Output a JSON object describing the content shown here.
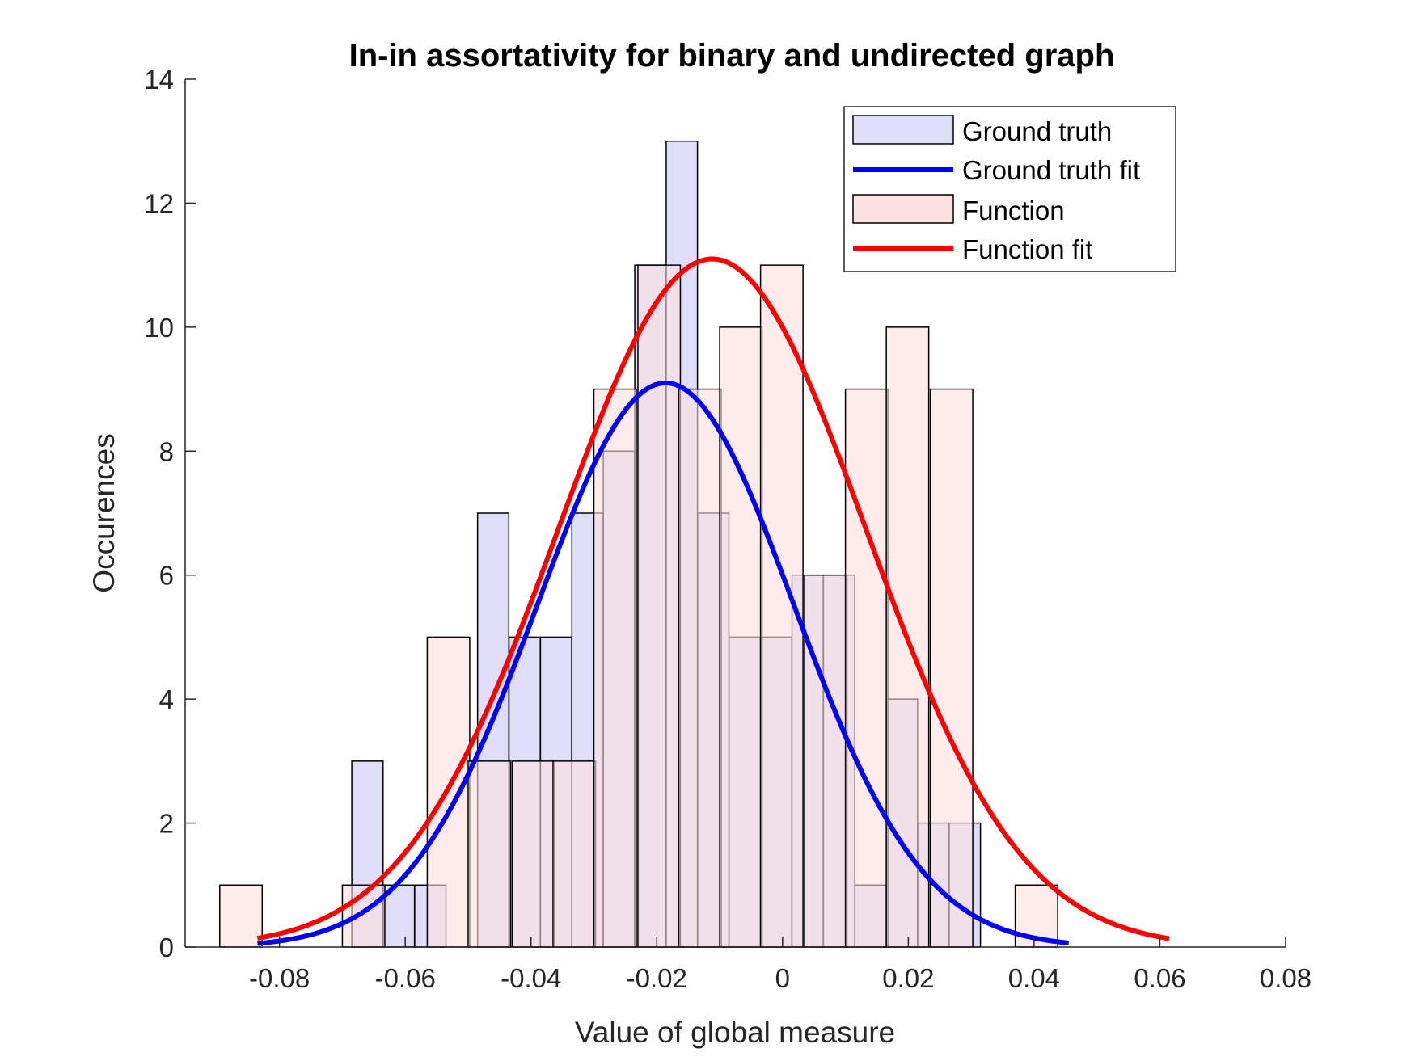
{
  "chart_data": {
    "type": "bar",
    "subtype": "overlaid-histogram-with-normal-fits",
    "title": "In-in assortativity for binary and undirected graph",
    "xlabel": "Value of global measure",
    "ylabel": "Occurences",
    "xlim": [
      -0.095,
      0.08
    ],
    "ylim": [
      0,
      14
    ],
    "xticks": [
      -0.08,
      -0.06,
      -0.04,
      -0.02,
      0,
      0.02,
      0.04,
      0.06,
      0.08
    ],
    "xtick_labels": [
      "-0.08",
      "-0.06",
      "-0.04",
      "-0.02",
      "0",
      "0.02",
      "0.04",
      "0.06",
      "0.08"
    ],
    "yticks": [
      0,
      2,
      4,
      6,
      8,
      10,
      12,
      14
    ],
    "ytick_labels": [
      "0",
      "2",
      "4",
      "6",
      "8",
      "10",
      "12",
      "14"
    ],
    "grid": false,
    "legend_position": "top-right",
    "series": [
      {
        "name": "Ground truth",
        "kind": "histogram",
        "color": "#dedef9",
        "edge_color": "#000000",
        "bin_width": 0.00497,
        "bins": [
          {
            "x0": -0.0815,
            "count": 0
          },
          {
            "x0": -0.0685,
            "count": 3
          },
          {
            "x0": -0.0635,
            "count": 1
          },
          {
            "x0": -0.0585,
            "count": 1
          },
          {
            "x0": -0.0485,
            "count": 7
          },
          {
            "x0": -0.0435,
            "count": 5
          },
          {
            "x0": -0.0385,
            "count": 5
          },
          {
            "x0": -0.0335,
            "count": 7
          },
          {
            "x0": -0.0285,
            "count": 8
          },
          {
            "x0": -0.0235,
            "count": 11
          },
          {
            "x0": -0.0185,
            "count": 13
          },
          {
            "x0": -0.0135,
            "count": 7
          },
          {
            "x0": -0.0085,
            "count": 5
          },
          {
            "x0": -0.0035,
            "count": 5
          },
          {
            "x0": 0.0015,
            "count": 6
          },
          {
            "x0": 0.0065,
            "count": 6
          },
          {
            "x0": 0.0115,
            "count": 1
          },
          {
            "x0": 0.0165,
            "count": 4
          },
          {
            "x0": 0.0215,
            "count": 2
          },
          {
            "x0": 0.0265,
            "count": 2
          }
        ]
      },
      {
        "name": "Ground truth fit",
        "kind": "normal-fit",
        "color": "#0000ff",
        "mean": -0.0186,
        "sd": 0.0204,
        "peak": 9.1,
        "x_range": [
          -0.0835,
          0.0455
        ]
      },
      {
        "name": "Function",
        "kind": "histogram",
        "color": "#fde0e0",
        "edge_color": "#000000",
        "bin_width": 0.00675,
        "bins": [
          {
            "x0": -0.0895,
            "count": 1
          },
          {
            "x0": -0.07,
            "count": 1
          },
          {
            "x0": -0.0565,
            "count": 5
          },
          {
            "x0": -0.05,
            "count": 3
          },
          {
            "x0": -0.043,
            "count": 3
          },
          {
            "x0": -0.0365,
            "count": 3
          },
          {
            "x0": -0.03,
            "count": 9
          },
          {
            "x0": -0.023,
            "count": 11
          },
          {
            "x0": -0.0165,
            "count": 9
          },
          {
            "x0": -0.01,
            "count": 10
          },
          {
            "x0": -0.0035,
            "count": 11
          },
          {
            "x0": 0.0035,
            "count": 6
          },
          {
            "x0": 0.01,
            "count": 9
          },
          {
            "x0": 0.0165,
            "count": 10
          },
          {
            "x0": 0.0235,
            "count": 9
          },
          {
            "x0": 0.03,
            "count": 0
          },
          {
            "x0": 0.037,
            "count": 1
          }
        ]
      },
      {
        "name": "Function fit",
        "kind": "normal-fit",
        "color": "#ff0000",
        "mean": -0.0112,
        "sd": 0.0245,
        "peak": 11.1,
        "x_range": [
          -0.0835,
          0.0615
        ]
      }
    ]
  }
}
